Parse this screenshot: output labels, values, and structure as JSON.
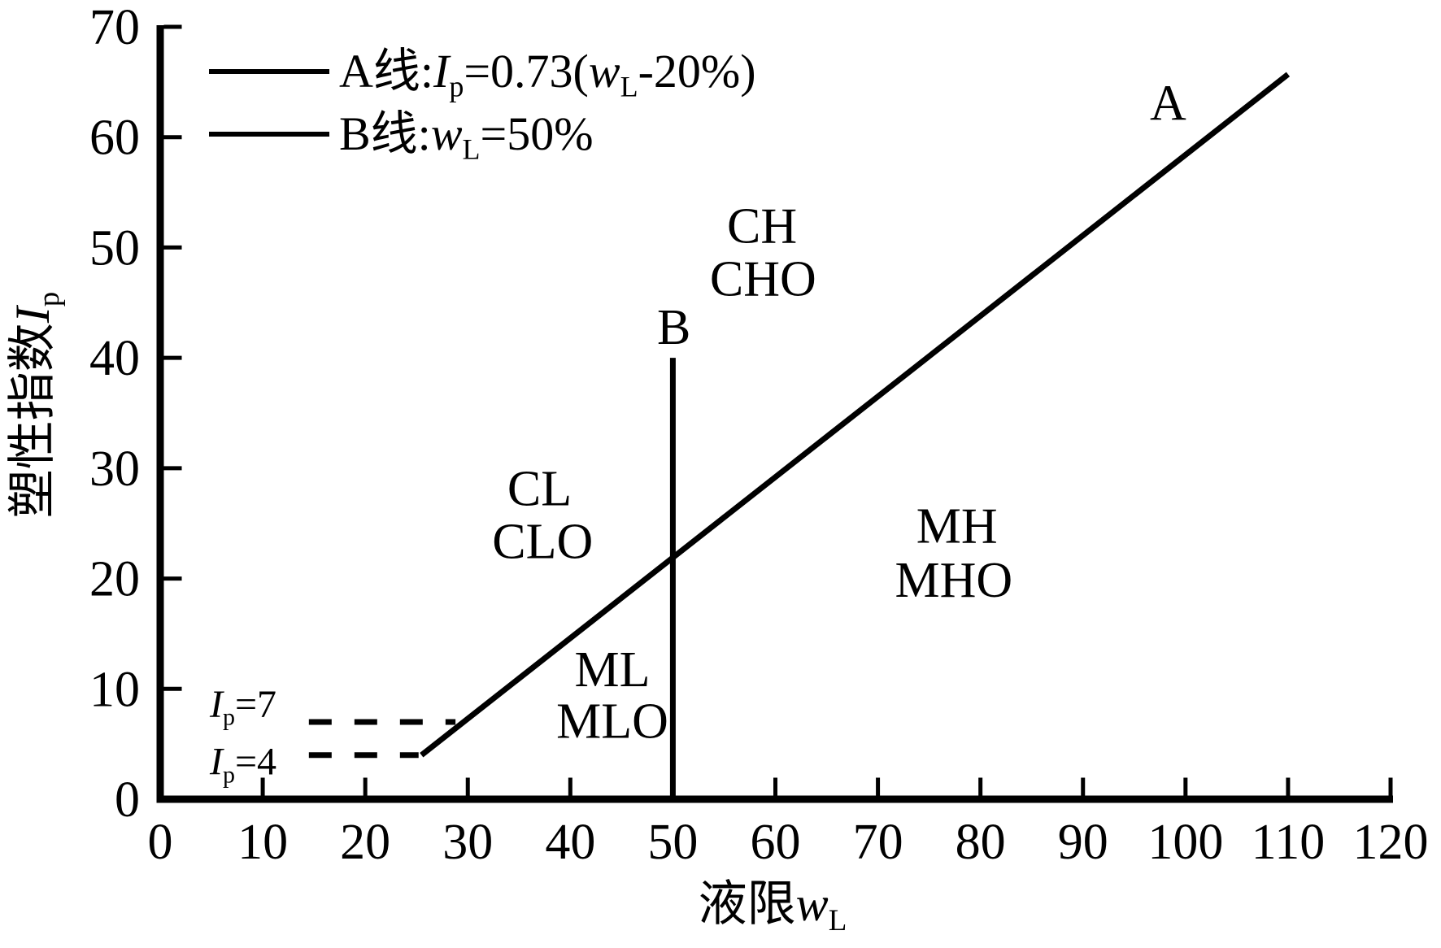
{
  "page": {
    "background": "#ffffff",
    "ink": "#000000"
  },
  "chart_data": {
    "type": "line",
    "title": "",
    "xlabel": "液限wL",
    "ylabel": "塑性指数Ip",
    "xlabel_tokens": [
      [
        "液限",
        "n"
      ],
      [
        "w",
        "i"
      ],
      [
        "L",
        "sub"
      ]
    ],
    "ylabel_tokens": [
      [
        "塑性指数",
        "n"
      ],
      [
        "I",
        "i"
      ],
      [
        "p",
        "sub"
      ]
    ],
    "xlim": [
      0,
      120
    ],
    "ylim": [
      0,
      70
    ],
    "xticks": [
      0,
      10,
      20,
      30,
      40,
      50,
      60,
      70,
      80,
      90,
      100,
      110,
      120
    ],
    "yticks": [
      0,
      10,
      20,
      30,
      40,
      50,
      60,
      70
    ],
    "grid": false,
    "legend_position": "top-left",
    "legend": [
      {
        "id": "a-line",
        "plain": "A线:Ip=0.73(wL-20%)",
        "tokens": [
          [
            "A线:",
            "n"
          ],
          [
            "I",
            "i"
          ],
          [
            "p",
            "sub"
          ],
          [
            "=0.73(",
            "n"
          ],
          [
            "w",
            "i"
          ],
          [
            "L",
            "sub"
          ],
          [
            "-20%)",
            "n"
          ]
        ]
      },
      {
        "id": "b-line",
        "plain": "B线:wL=50%",
        "tokens": [
          [
            "B线:",
            "n"
          ],
          [
            "w",
            "i"
          ],
          [
            "L",
            "sub"
          ],
          [
            "=50%",
            "n"
          ]
        ]
      }
    ],
    "series": [
      {
        "id": "a-line",
        "name": "A",
        "equation": "Ip=0.73(wL-20%)",
        "style": "solid",
        "points": [
          [
            25.48,
            4
          ],
          [
            110,
            65.7
          ]
        ]
      },
      {
        "id": "b-line",
        "name": "B",
        "equation": "wL=50%",
        "style": "solid",
        "points": [
          [
            50,
            0
          ],
          [
            50,
            40
          ]
        ]
      }
    ],
    "dashed_lines": [
      {
        "id": "ip-7",
        "plain": "Ip=7",
        "tokens": [
          [
            "I",
            "i"
          ],
          [
            "p",
            "sub"
          ],
          [
            "=7",
            "n"
          ]
        ],
        "y": 7,
        "x_from": 14.5,
        "x_to": 28.8
      },
      {
        "id": "ip-4",
        "plain": "Ip=4",
        "tokens": [
          [
            "I",
            "i"
          ],
          [
            "p",
            "sub"
          ],
          [
            "=4",
            "n"
          ]
        ],
        "y": 4,
        "x_from": 14.5,
        "x_to": 25.2
      }
    ],
    "region_labels": [
      {
        "text": "CH",
        "x": 58.7,
        "y": 52.0
      },
      {
        "text": "CHO",
        "x": 58.8,
        "y": 47.2
      },
      {
        "text": "CL",
        "x": 37.0,
        "y": 28.2
      },
      {
        "text": "CLO",
        "x": 37.3,
        "y": 23.4
      },
      {
        "text": "MH",
        "x": 77.7,
        "y": 24.8
      },
      {
        "text": "MHO",
        "x": 77.4,
        "y": 19.9
      },
      {
        "text": "ML",
        "x": 44.1,
        "y": 11.8
      },
      {
        "text": "MLO",
        "x": 44.1,
        "y": 7.1
      }
    ],
    "line_labels": [
      {
        "text": "A",
        "x": 98.3,
        "y": 63.1
      },
      {
        "text": "B",
        "x": 50.1,
        "y": 42.8
      }
    ]
  }
}
